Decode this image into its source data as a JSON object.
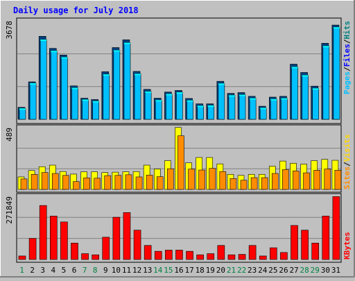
{
  "title": "Daily usage for July 2018",
  "colors": {
    "background": "#c0c0c0",
    "panel": "#c0c0c0",
    "title": "#0000ff",
    "frame": "#000000",
    "grid": "#808080",
    "pages": "#00c0ff",
    "pages_top": "#00ffff",
    "hits": "#00a0ff",
    "visits": "#ffff00",
    "sites": "#ff8c00",
    "kbytes": "#ff0000",
    "weekend_label": "#008040",
    "weekday_label": "#000000",
    "hits_label": "#008080",
    "files_label": "#0000ff",
    "pages_label": "#00c0ff",
    "visits_label": "#ffd700",
    "sites_label": "#ff8c00",
    "kbytes_label": "#ff0000"
  },
  "chart_data": [
    {
      "type": "bar",
      "panel": "hits-files-pages",
      "ymax_label": "3678",
      "ylim": [
        0,
        3678
      ],
      "legend": [
        "Pages",
        "Files",
        "Hits"
      ],
      "categories": [
        "1",
        "2",
        "3",
        "4",
        "5",
        "6",
        "7",
        "8",
        "9",
        "10",
        "11",
        "12",
        "13",
        "14",
        "15",
        "16",
        "17",
        "18",
        "19",
        "20",
        "21",
        "22",
        "23",
        "24",
        "25",
        "26",
        "27",
        "28",
        "29",
        "30",
        "31"
      ],
      "weekend_days": [
        "1",
        "7",
        "8",
        "14",
        "15",
        "21",
        "22",
        "28",
        "29"
      ],
      "series": [
        {
          "name": "Hits",
          "values": [
            450,
            1400,
            3100,
            2650,
            2400,
            1250,
            790,
            740,
            1780,
            2680,
            2970,
            1790,
            1120,
            790,
            1020,
            1080,
            780,
            580,
            580,
            1420,
            970,
            1000,
            860,
            490,
            830,
            860,
            2060,
            1750,
            1240,
            2840,
            3520
          ]
        },
        {
          "name": "Files",
          "values": [
            410,
            1350,
            2980,
            2560,
            2320,
            1180,
            740,
            680,
            1680,
            2580,
            2860,
            1700,
            1040,
            720,
            950,
            1010,
            710,
            510,
            520,
            1340,
            900,
            920,
            790,
            430,
            760,
            790,
            1960,
            1650,
            1160,
            2740,
            3440
          ]
        }
      ]
    },
    {
      "type": "bar",
      "panel": "visits-sites",
      "ymax_label": "489",
      "ylim": [
        0,
        489
      ],
      "legend": [
        "Sites",
        "Visits"
      ],
      "categories": [
        "1",
        "2",
        "3",
        "4",
        "5",
        "6",
        "7",
        "8",
        "9",
        "10",
        "11",
        "12",
        "13",
        "14",
        "15",
        "16",
        "17",
        "18",
        "19",
        "20",
        "21",
        "22",
        "23",
        "24",
        "25",
        "26",
        "27",
        "28",
        "29",
        "30",
        "31"
      ],
      "series": [
        {
          "name": "Visits",
          "values": [
            98,
            148,
            178,
            190,
            140,
            120,
            138,
            138,
            132,
            135,
            138,
            140,
            190,
            160,
            225,
            485,
            208,
            250,
            250,
            200,
            118,
            110,
            118,
            118,
            182,
            222,
            205,
            198,
            225,
            235,
            228
          ]
        },
        {
          "name": "Sites",
          "values": [
            82,
            118,
            132,
            125,
            110,
            62,
            90,
            88,
            108,
            110,
            115,
            98,
            112,
            100,
            162,
            420,
            160,
            152,
            165,
            140,
            85,
            72,
            92,
            92,
            125,
            155,
            145,
            130,
            150,
            160,
            150
          ]
        }
      ]
    },
    {
      "type": "bar",
      "panel": "kbytes",
      "ymax_label": "271849",
      "ylim": [
        0,
        271849
      ],
      "legend": [
        "KBytes"
      ],
      "categories": [
        "1",
        "2",
        "3",
        "4",
        "5",
        "6",
        "7",
        "8",
        "9",
        "10",
        "11",
        "12",
        "13",
        "14",
        "15",
        "16",
        "17",
        "18",
        "19",
        "20",
        "21",
        "22",
        "23",
        "24",
        "25",
        "26",
        "27",
        "28",
        "29",
        "30",
        "31"
      ],
      "series": [
        {
          "name": "KBytes",
          "values": [
            15000,
            90000,
            230000,
            185000,
            160000,
            70000,
            25000,
            20000,
            95000,
            180000,
            200000,
            125000,
            60000,
            35000,
            40000,
            40000,
            35000,
            20000,
            25000,
            60000,
            20000,
            22000,
            60000,
            15000,
            50000,
            30000,
            145000,
            125000,
            70000,
            185000,
            268000
          ]
        }
      ]
    }
  ]
}
